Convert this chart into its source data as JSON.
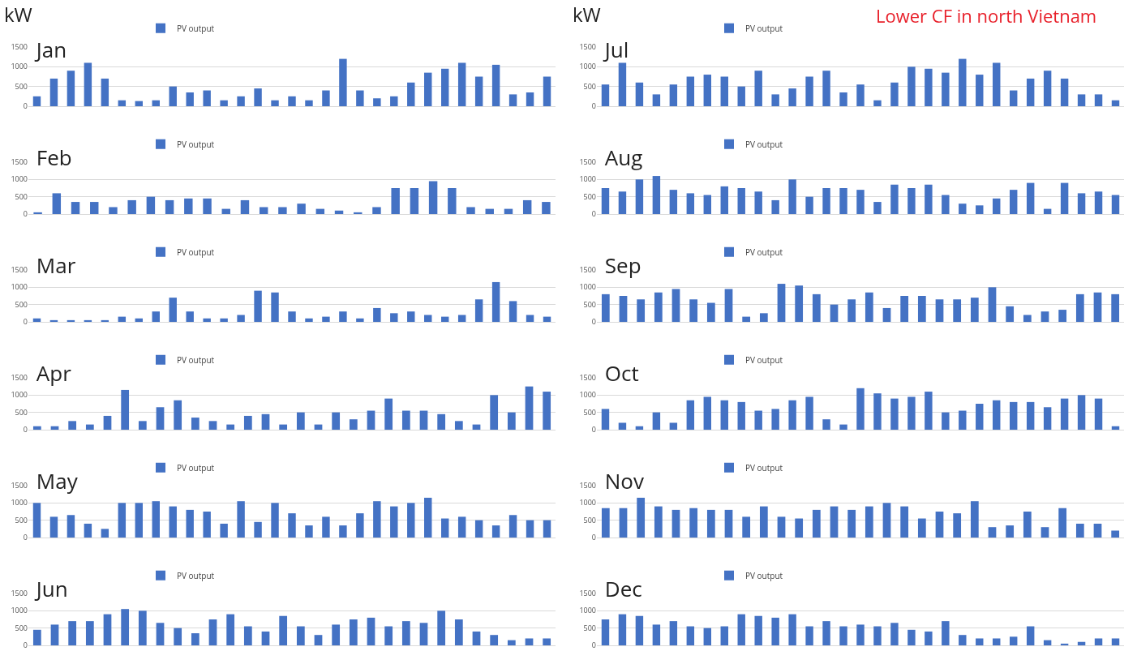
{
  "chart_data": [
    {
      "type": "bar",
      "title": "Jan",
      "ylabel": "kW",
      "categories": [
        null,
        null,
        null,
        null,
        null,
        null,
        null,
        null,
        null,
        null,
        null,
        null,
        null,
        null,
        null,
        null,
        null,
        null,
        null,
        null,
        null,
        null,
        null,
        null,
        null,
        null,
        null,
        null,
        null,
        null,
        null
      ],
      "series": [
        {
          "name": "PV output",
          "color": "#4472c4",
          "values": [
            250,
            700,
            900,
            1100,
            700,
            150,
            130,
            150,
            500,
            350,
            400,
            150,
            250,
            450,
            150,
            250,
            150,
            400,
            1200,
            400,
            200,
            250,
            600,
            850,
            950,
            1100,
            750,
            1050,
            300,
            350,
            750
          ]
        }
      ],
      "ylim": [
        0,
        1500
      ],
      "yticks": [
        0,
        500,
        1000,
        1500
      ],
      "grid": "y",
      "legend": "top",
      "tick_labels": "y"
    },
    {
      "type": "bar",
      "title": "Feb",
      "categories": [
        null,
        null,
        null,
        null,
        null,
        null,
        null,
        null,
        null,
        null,
        null,
        null,
        null,
        null,
        null,
        null,
        null,
        null,
        null,
        null,
        null,
        null,
        null,
        null,
        null,
        null,
        null,
        null
      ],
      "series": [
        {
          "name": "PV output",
          "color": "#4472c4",
          "values": [
            50,
            600,
            350,
            350,
            200,
            400,
            500,
            400,
            450,
            450,
            150,
            400,
            200,
            200,
            300,
            150,
            100,
            50,
            200,
            750,
            750,
            950,
            750,
            200,
            150,
            150,
            400,
            350
          ]
        }
      ],
      "ylim": [
        0,
        1500
      ],
      "yticks": [
        0,
        500,
        1000,
        1500
      ],
      "grid": "y",
      "legend": "top",
      "tick_labels": "y"
    },
    {
      "type": "bar",
      "title": "Mar",
      "categories": [
        null,
        null,
        null,
        null,
        null,
        null,
        null,
        null,
        null,
        null,
        null,
        null,
        null,
        null,
        null,
        null,
        null,
        null,
        null,
        null,
        null,
        null,
        null,
        null,
        null,
        null,
        null,
        null,
        null,
        null,
        null
      ],
      "series": [
        {
          "name": "PV output",
          "color": "#4472c4",
          "values": [
            100,
            50,
            50,
            50,
            50,
            150,
            100,
            300,
            700,
            300,
            100,
            100,
            200,
            900,
            850,
            300,
            100,
            150,
            300,
            100,
            400,
            250,
            300,
            200,
            150,
            200,
            650,
            1150,
            600,
            200,
            150
          ]
        }
      ],
      "ylim": [
        0,
        1500
      ],
      "yticks": [
        0,
        500,
        1000,
        1500
      ],
      "grid": "y",
      "legend": "top",
      "tick_labels": "y"
    },
    {
      "type": "bar",
      "title": "Apr",
      "categories": [
        null,
        null,
        null,
        null,
        null,
        null,
        null,
        null,
        null,
        null,
        null,
        null,
        null,
        null,
        null,
        null,
        null,
        null,
        null,
        null,
        null,
        null,
        null,
        null,
        null,
        null,
        null,
        null,
        null,
        null
      ],
      "series": [
        {
          "name": "PV output",
          "color": "#4472c4",
          "values": [
            100,
            100,
            250,
            150,
            400,
            1150,
            250,
            650,
            850,
            350,
            250,
            150,
            400,
            450,
            150,
            500,
            150,
            500,
            300,
            550,
            900,
            550,
            550,
            450,
            250,
            150,
            1000,
            500,
            1250,
            1100
          ]
        }
      ],
      "ylim": [
        0,
        1500
      ],
      "yticks": [
        0,
        500,
        1000,
        1500
      ],
      "grid": "y",
      "legend": "top",
      "tick_labels": "y"
    },
    {
      "type": "bar",
      "title": "May",
      "categories": [
        null,
        null,
        null,
        null,
        null,
        null,
        null,
        null,
        null,
        null,
        null,
        null,
        null,
        null,
        null,
        null,
        null,
        null,
        null,
        null,
        null,
        null,
        null,
        null,
        null,
        null,
        null,
        null,
        null,
        null,
        null
      ],
      "series": [
        {
          "name": "PV output",
          "color": "#4472c4",
          "values": [
            1000,
            600,
            650,
            400,
            250,
            1000,
            1000,
            1050,
            900,
            800,
            750,
            400,
            1050,
            450,
            1000,
            700,
            350,
            600,
            350,
            700,
            1050,
            900,
            1000,
            1150,
            550,
            600,
            500,
            350,
            650,
            500,
            500
          ]
        }
      ],
      "ylim": [
        0,
        1500
      ],
      "yticks": [
        0,
        500,
        1000,
        1500
      ],
      "grid": "y",
      "legend": "top",
      "tick_labels": "y"
    },
    {
      "type": "bar",
      "title": "Jun",
      "categories": [
        null,
        null,
        null,
        null,
        null,
        null,
        null,
        null,
        null,
        null,
        null,
        null,
        null,
        null,
        null,
        null,
        null,
        null,
        null,
        null,
        null,
        null,
        null,
        null,
        null,
        null,
        null,
        null,
        null,
        null
      ],
      "series": [
        {
          "name": "PV output",
          "color": "#4472c4",
          "values": [
            450,
            600,
            700,
            700,
            900,
            1050,
            1000,
            650,
            500,
            350,
            750,
            900,
            550,
            400,
            850,
            550,
            300,
            600,
            750,
            800,
            550,
            700,
            650,
            1000,
            750,
            400,
            300,
            150,
            200,
            200
          ]
        }
      ],
      "ylim": [
        0,
        1500
      ],
      "yticks": [
        0,
        500,
        1000,
        1500
      ],
      "grid": "y",
      "legend": "top",
      "tick_labels": "y"
    },
    {
      "type": "bar",
      "title": "Jul",
      "ylabel": "kW",
      "annotations": [
        "Lower CF in north Vietnam"
      ],
      "categories": [
        null,
        null,
        null,
        null,
        null,
        null,
        null,
        null,
        null,
        null,
        null,
        null,
        null,
        null,
        null,
        null,
        null,
        null,
        null,
        null,
        null,
        null,
        null,
        null,
        null,
        null,
        null,
        null,
        null,
        null,
        null
      ],
      "series": [
        {
          "name": "PV output",
          "color": "#4472c4",
          "values": [
            550,
            1100,
            600,
            300,
            550,
            750,
            800,
            750,
            500,
            900,
            300,
            450,
            750,
            900,
            350,
            550,
            150,
            600,
            1000,
            950,
            850,
            1200,
            800,
            1100,
            400,
            700,
            900,
            700,
            300,
            300,
            150
          ]
        }
      ],
      "ylim": [
        0,
        1500
      ],
      "yticks": [
        0,
        500,
        1000,
        1500
      ],
      "grid": "y",
      "legend": "top",
      "tick_labels": "y"
    },
    {
      "type": "bar",
      "title": "Aug",
      "categories": [
        null,
        null,
        null,
        null,
        null,
        null,
        null,
        null,
        null,
        null,
        null,
        null,
        null,
        null,
        null,
        null,
        null,
        null,
        null,
        null,
        null,
        null,
        null,
        null,
        null,
        null,
        null,
        null,
        null,
        null,
        null
      ],
      "series": [
        {
          "name": "PV output",
          "color": "#4472c4",
          "values": [
            750,
            650,
            1000,
            1100,
            700,
            600,
            550,
            800,
            750,
            650,
            400,
            1000,
            500,
            750,
            750,
            700,
            350,
            850,
            750,
            850,
            550,
            300,
            250,
            450,
            700,
            900,
            150,
            900,
            600,
            650,
            550
          ]
        }
      ],
      "ylim": [
        0,
        1500
      ],
      "yticks": [
        0,
        500,
        1000,
        1500
      ],
      "grid": "y",
      "legend": "top",
      "tick_labels": "y"
    },
    {
      "type": "bar",
      "title": "Sep",
      "categories": [
        null,
        null,
        null,
        null,
        null,
        null,
        null,
        null,
        null,
        null,
        null,
        null,
        null,
        null,
        null,
        null,
        null,
        null,
        null,
        null,
        null,
        null,
        null,
        null,
        null,
        null,
        null,
        null,
        null,
        null
      ],
      "series": [
        {
          "name": "PV output",
          "color": "#4472c4",
          "values": [
            800,
            750,
            650,
            850,
            950,
            650,
            550,
            950,
            150,
            250,
            1100,
            1050,
            800,
            500,
            650,
            850,
            400,
            750,
            750,
            650,
            650,
            700,
            1000,
            450,
            200,
            300,
            350,
            800,
            850,
            800
          ]
        }
      ],
      "ylim": [
        0,
        1500
      ],
      "yticks": [
        0,
        500,
        1000,
        1500
      ],
      "grid": "y",
      "legend": "top",
      "tick_labels": "y"
    },
    {
      "type": "bar",
      "title": "Oct",
      "categories": [
        null,
        null,
        null,
        null,
        null,
        null,
        null,
        null,
        null,
        null,
        null,
        null,
        null,
        null,
        null,
        null,
        null,
        null,
        null,
        null,
        null,
        null,
        null,
        null,
        null,
        null,
        null,
        null,
        null,
        null,
        null
      ],
      "series": [
        {
          "name": "PV output",
          "color": "#4472c4",
          "values": [
            600,
            200,
            100,
            500,
            200,
            850,
            950,
            850,
            800,
            550,
            600,
            850,
            950,
            300,
            150,
            1200,
            1050,
            900,
            950,
            1100,
            500,
            550,
            750,
            850,
            800,
            800,
            650,
            900,
            1000,
            900,
            100
          ]
        }
      ],
      "ylim": [
        0,
        1500
      ],
      "yticks": [
        0,
        500,
        1000,
        1500
      ],
      "grid": "y",
      "legend": "top",
      "tick_labels": "y"
    },
    {
      "type": "bar",
      "title": "Nov",
      "categories": [
        null,
        null,
        null,
        null,
        null,
        null,
        null,
        null,
        null,
        null,
        null,
        null,
        null,
        null,
        null,
        null,
        null,
        null,
        null,
        null,
        null,
        null,
        null,
        null,
        null,
        null,
        null,
        null,
        null,
        null
      ],
      "series": [
        {
          "name": "PV output",
          "color": "#4472c4",
          "values": [
            850,
            850,
            1150,
            900,
            800,
            850,
            800,
            800,
            600,
            900,
            600,
            550,
            800,
            900,
            800,
            900,
            1000,
            900,
            550,
            750,
            700,
            1050,
            300,
            350,
            750,
            300,
            850,
            400,
            400,
            200
          ]
        }
      ],
      "ylim": [
        0,
        1500
      ],
      "yticks": [
        0,
        500,
        1000,
        1500
      ],
      "grid": "y",
      "legend": "top",
      "tick_labels": "y"
    },
    {
      "type": "bar",
      "title": "Dec",
      "categories": [
        null,
        null,
        null,
        null,
        null,
        null,
        null,
        null,
        null,
        null,
        null,
        null,
        null,
        null,
        null,
        null,
        null,
        null,
        null,
        null,
        null,
        null,
        null,
        null,
        null,
        null,
        null,
        null,
        null,
        null,
        null
      ],
      "series": [
        {
          "name": "PV output",
          "color": "#4472c4",
          "values": [
            750,
            900,
            850,
            600,
            700,
            550,
            500,
            550,
            900,
            850,
            800,
            900,
            550,
            700,
            550,
            600,
            550,
            650,
            450,
            400,
            700,
            300,
            200,
            200,
            250,
            550,
            150,
            50,
            100,
            200,
            200
          ]
        }
      ],
      "ylim": [
        0,
        1500
      ],
      "yticks": [
        0,
        500,
        1000,
        1500
      ],
      "grid": "y",
      "legend": "top",
      "tick_labels": "y"
    }
  ]
}
